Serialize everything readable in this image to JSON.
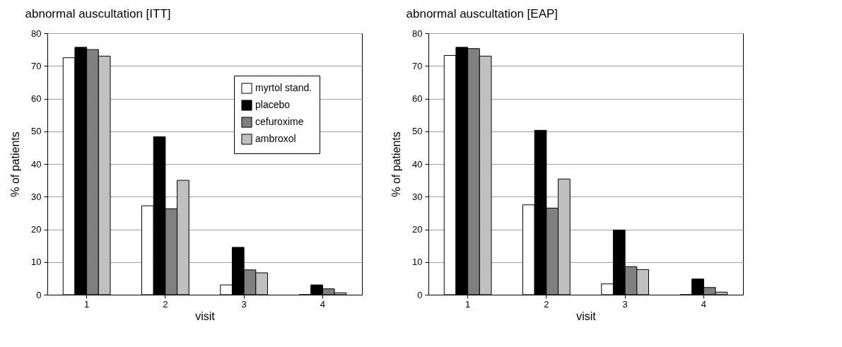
{
  "chart_data": [
    {
      "type": "bar",
      "title": "abnormal auscultation [ITT]",
      "xlabel": "visit",
      "ylabel": "% of patients",
      "categories": [
        "1",
        "2",
        "3",
        "4"
      ],
      "ylim": [
        0,
        80
      ],
      "yticks": [
        0,
        10,
        20,
        30,
        40,
        50,
        60,
        70,
        80
      ],
      "grid": "y",
      "legend": "top right",
      "series": [
        {
          "name": "myrtol stand.",
          "color": "#ffffff",
          "values": [
            72.5,
            27.2,
            3,
            0
          ]
        },
        {
          "name": "placebo",
          "color": "#000000",
          "values": [
            75.7,
            48.3,
            14.5,
            3
          ]
        },
        {
          "name": "cefuroxime",
          "color": "#808080",
          "values": [
            75,
            26.3,
            7.6,
            1.8
          ]
        },
        {
          "name": "ambroxol",
          "color": "#c0c0c0",
          "values": [
            73,
            35,
            6.7,
            0.6
          ]
        }
      ]
    },
    {
      "type": "bar",
      "title": "abnormal auscultation [EAP]",
      "xlabel": "visit",
      "ylabel": "% of patients",
      "categories": [
        "1",
        "2",
        "3",
        "4"
      ],
      "ylim": [
        0,
        80
      ],
      "yticks": [
        0,
        10,
        20,
        30,
        40,
        50,
        60,
        70,
        80
      ],
      "grid": "y",
      "legend": false,
      "series": [
        {
          "color": "#ffffff",
          "values": [
            73.2,
            27.5,
            3.3,
            0
          ]
        },
        {
          "color": "#000000",
          "values": [
            75.7,
            50.3,
            19.8,
            4.8
          ]
        },
        {
          "color": "#808080",
          "values": [
            75.3,
            26.5,
            8.6,
            2.2
          ]
        },
        {
          "color": "#c0c0c0",
          "values": [
            73,
            35.4,
            7.7,
            0.8
          ]
        }
      ]
    }
  ]
}
